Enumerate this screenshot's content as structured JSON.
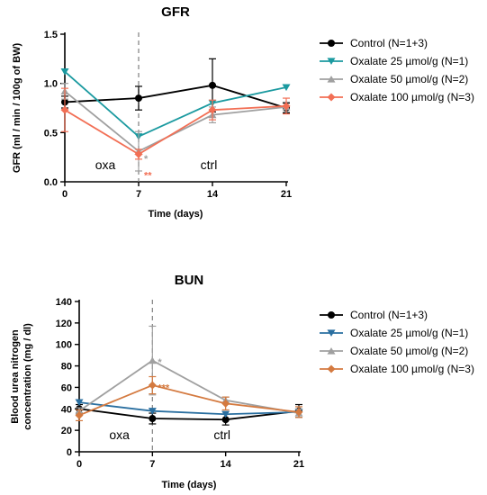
{
  "chart_data": [
    {
      "type": "line",
      "title": "GFR",
      "xlabel": "Time (days)",
      "ylabel": "GFR (ml / min / 100g of BW)",
      "x": [
        0,
        7,
        14,
        21
      ],
      "xticks": [
        "0",
        "7",
        "14",
        "21"
      ],
      "ylim": [
        0,
        1.5
      ],
      "yticks": [
        "0.0",
        "0.5",
        "1.0",
        "1.5"
      ],
      "yticks_values": [
        0,
        0.5,
        1.0,
        1.5
      ],
      "marker_day": 7,
      "annotations": [
        "oxa",
        "ctrl"
      ],
      "legend": "right",
      "series": [
        {
          "name": "Control (N=1+3)",
          "color": "#000000",
          "marker": "circle",
          "values": [
            0.81,
            0.85,
            0.98,
            0.75
          ],
          "err": [
            0.06,
            0.12,
            0.27,
            0.05
          ]
        },
        {
          "name": "Oxalate 25 µmol/g (N=1)",
          "color": "#1b9aa0",
          "marker": "triangle-down",
          "values": [
            1.12,
            0.46,
            0.8,
            0.96
          ],
          "err": [
            0,
            0,
            0,
            0
          ]
        },
        {
          "name": "Oxalate 50 µmol/g (N=2)",
          "color": "#a0a0a0",
          "marker": "triangle-up",
          "values": [
            0.92,
            0.31,
            0.68,
            0.76
          ],
          "err": [
            0.08,
            0.2,
            0.08,
            0.05
          ]
        },
        {
          "name": "Oxalate 100 µmol/g (N=3)",
          "color": "#f26f55",
          "marker": "diamond",
          "values": [
            0.73,
            0.28,
            0.73,
            0.77
          ],
          "err": [
            0.22,
            0.05,
            0.1,
            0.08
          ]
        }
      ],
      "stars": [
        {
          "text": "*",
          "color": "#a0a0a0",
          "x": 7,
          "y": 0.24
        },
        {
          "text": "**",
          "color": "#f26f55",
          "x": 7,
          "y": 0.07
        }
      ]
    },
    {
      "type": "line",
      "title": "BUN",
      "xlabel": "Time (days)",
      "ylabel": "Blood urea nitrogen concentration (mg / dl)",
      "ylabel_lines": [
        "Blood urea nitrogen",
        "concentration (mg / dl)"
      ],
      "x": [
        0,
        7,
        14,
        21
      ],
      "xticks": [
        "0",
        "7",
        "14",
        "21"
      ],
      "ylim": [
        0,
        140
      ],
      "yticks": [
        "0",
        "20",
        "40",
        "60",
        "80",
        "100",
        "120",
        "140"
      ],
      "yticks_values": [
        0,
        20,
        40,
        60,
        80,
        100,
        120,
        140
      ],
      "marker_day": 7,
      "annotations": [
        "oxa",
        "ctrl"
      ],
      "legend": "right",
      "series": [
        {
          "name": "Control (N=1+3)",
          "color": "#000000",
          "marker": "circle",
          "values": [
            40,
            31,
            30,
            38
          ],
          "err": [
            4,
            5,
            5,
            6
          ]
        },
        {
          "name": "Oxalate 25 µmol/g (N=1)",
          "color": "#2a6fa0",
          "marker": "triangle-down",
          "values": [
            46,
            38,
            35,
            37
          ],
          "err": [
            0,
            0,
            0,
            0
          ]
        },
        {
          "name": "Oxalate 50 µmol/g (N=2)",
          "color": "#a0a0a0",
          "marker": "triangle-up",
          "values": [
            38,
            85,
            48,
            36
          ],
          "err": [
            3,
            32,
            3,
            4
          ]
        },
        {
          "name": "Oxalate 100 µmol/g (N=3)",
          "color": "#d47a40",
          "marker": "diamond",
          "values": [
            34,
            62,
            45,
            37
          ],
          "err": [
            5,
            8,
            6,
            5
          ]
        }
      ],
      "stars": [
        {
          "text": "*",
          "color": "#a0a0a0",
          "x": 7,
          "y": 84
        },
        {
          "text": "***",
          "color": "#d47a40",
          "x": 7,
          "y": 60
        }
      ]
    }
  ]
}
